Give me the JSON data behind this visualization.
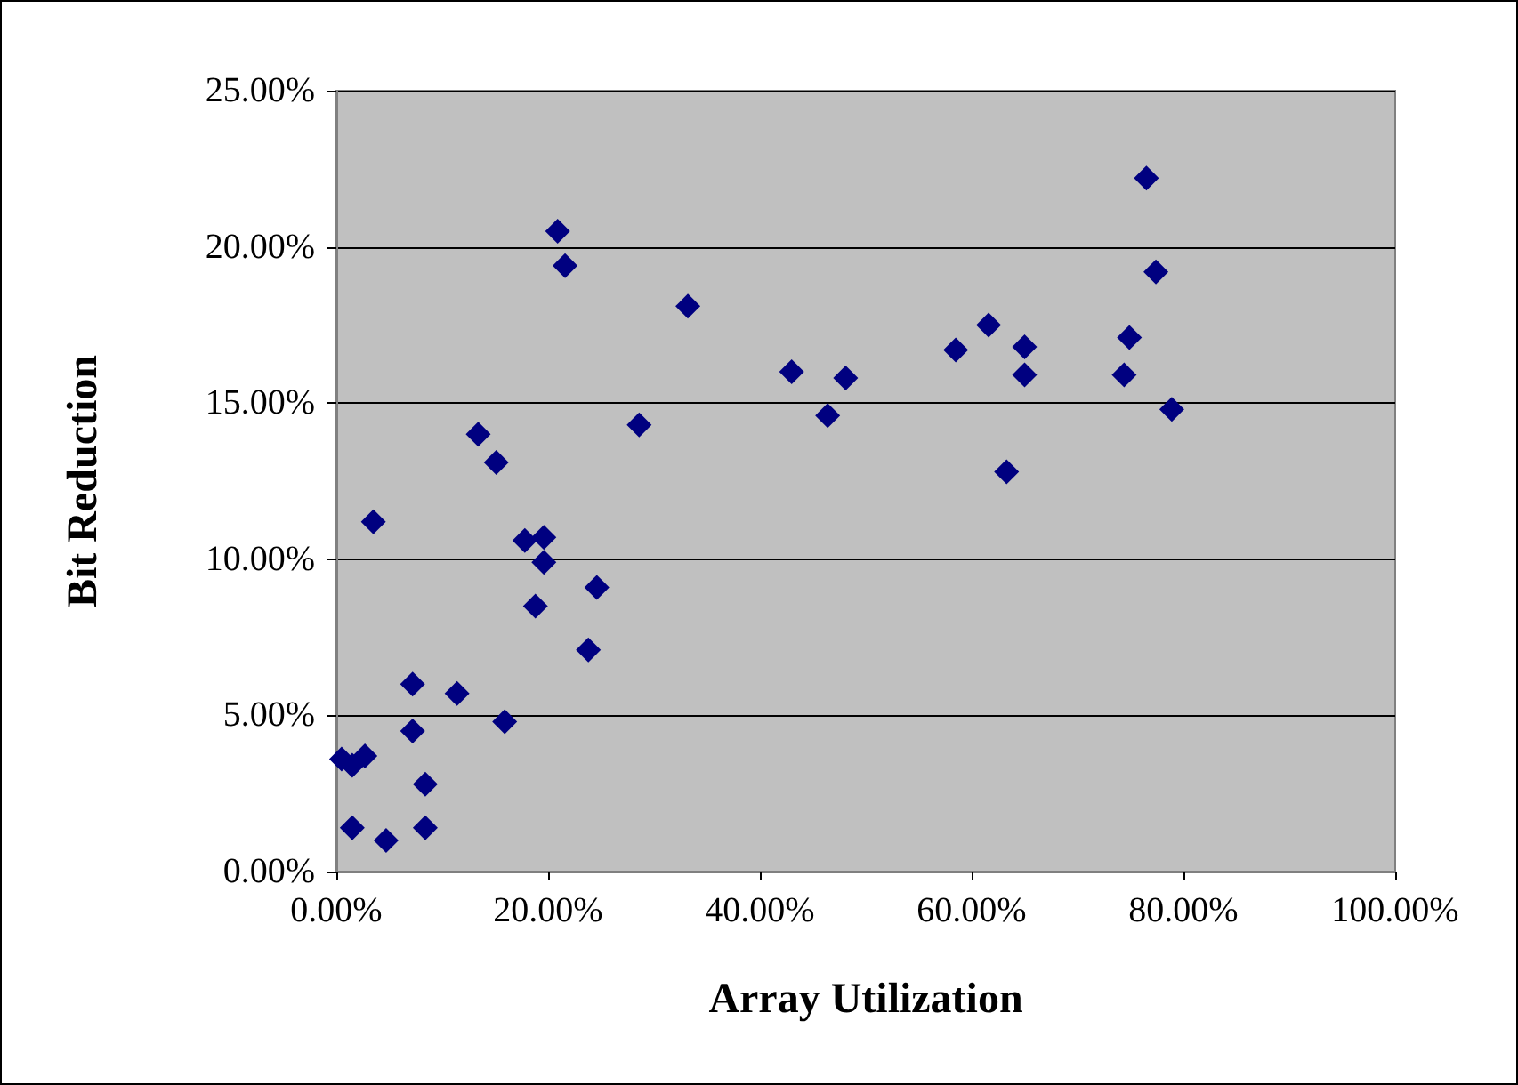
{
  "chart_data": {
    "type": "scatter",
    "xlabel": "Array Utilization",
    "ylabel": "Bit Reduction",
    "marker": "diamond",
    "grid": "y",
    "xlim": [
      0,
      100
    ],
    "ylim": [
      0,
      25
    ],
    "xticks": [
      {
        "value": 0,
        "label": "0.00%"
      },
      {
        "value": 20,
        "label": "20.00%"
      },
      {
        "value": 40,
        "label": "40.00%"
      },
      {
        "value": 60,
        "label": "60.00%"
      },
      {
        "value": 80,
        "label": "80.00%"
      },
      {
        "value": 100,
        "label": "100.00%"
      }
    ],
    "yticks": [
      {
        "value": 0,
        "label": "0.00%"
      },
      {
        "value": 5,
        "label": "5.00%"
      },
      {
        "value": 10,
        "label": "10.00%"
      },
      {
        "value": 15,
        "label": "15.00%"
      },
      {
        "value": 20,
        "label": "20.00%"
      },
      {
        "value": 25,
        "label": "25.00%"
      }
    ],
    "series": [
      {
        "color": "#000080",
        "x": [
          0.5,
          1.5,
          2.7,
          1.5,
          4.7,
          3.5,
          7.2,
          7.2,
          8.4,
          8.4,
          11.4,
          13.4,
          15.1,
          15.9,
          17.8,
          19.6,
          19.6,
          18.8,
          20.9,
          21.6,
          23.8,
          24.6,
          28.6,
          33.2,
          43.0,
          46.4,
          48.1,
          58.5,
          61.6,
          63.3,
          65.0,
          65.0,
          74.4,
          74.9,
          76.5,
          77.4,
          78.9
        ],
        "values": [
          3.6,
          3.4,
          3.7,
          1.4,
          1.0,
          11.2,
          6.0,
          4.5,
          2.8,
          1.4,
          5.7,
          14.0,
          13.1,
          4.8,
          10.6,
          10.7,
          9.9,
          8.5,
          20.5,
          19.4,
          7.1,
          9.1,
          14.3,
          18.1,
          16.0,
          14.6,
          15.8,
          16.7,
          17.5,
          12.8,
          16.8,
          15.9,
          15.9,
          17.1,
          22.2,
          19.2,
          14.8
        ]
      }
    ]
  }
}
